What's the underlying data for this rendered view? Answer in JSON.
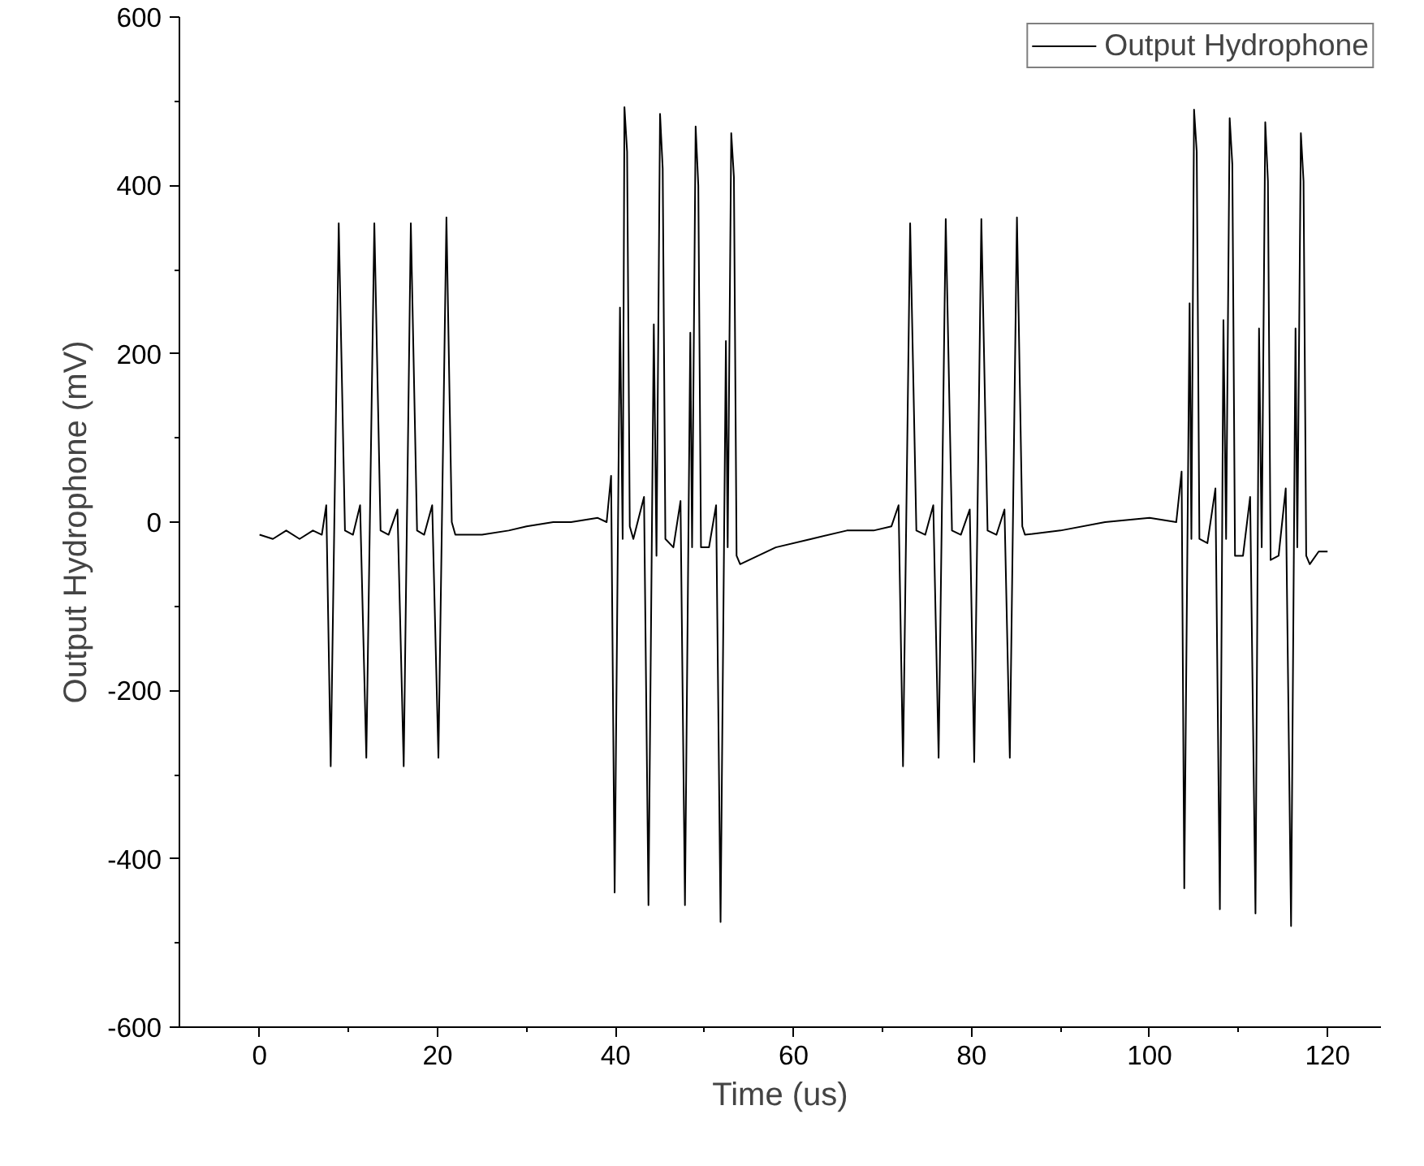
{
  "chart_data": {
    "type": "line",
    "xlabel": "Time (us)",
    "ylabel": "Output Hydrophone (mV)",
    "xlim": [
      -9,
      126
    ],
    "ylim": [
      -600,
      600
    ],
    "xticks": [
      0,
      20,
      40,
      60,
      80,
      100,
      120
    ],
    "yticks": [
      -600,
      -400,
      -200,
      0,
      200,
      400,
      600
    ],
    "grid": false,
    "legend": "top right",
    "line_style": "solid",
    "marker": "none",
    "series": [
      {
        "name": "Output Hydrophone",
        "color": "#000000",
        "x": [
          0,
          1.5,
          3,
          4.5,
          6,
          7,
          7.5,
          8,
          8.9,
          9.6,
          10.5,
          11.3,
          12,
          12.9,
          13.6,
          14.5,
          15.5,
          16.2,
          17,
          17.7,
          18.5,
          19.4,
          20.1,
          21,
          21.6,
          22,
          25,
          28,
          30,
          33,
          35,
          38,
          39,
          39.5,
          39.9,
          40.5,
          40.8,
          41,
          41.3,
          41.6,
          42,
          43.2,
          43.7,
          44.3,
          44.6,
          45,
          45.3,
          45.6,
          46.5,
          47.3,
          47.8,
          48.4,
          48.6,
          49,
          49.3,
          49.6,
          50.5,
          51.3,
          51.8,
          52.4,
          52.6,
          53,
          53.3,
          53.6,
          54,
          58,
          62,
          66,
          69,
          71,
          71.8,
          72.3,
          73.1,
          73.8,
          74.8,
          75.7,
          76.3,
          77.1,
          77.8,
          78.8,
          79.8,
          80.3,
          81.1,
          81.8,
          82.8,
          83.7,
          84.3,
          85.1,
          85.7,
          86,
          90,
          95,
          100,
          103,
          103.6,
          103.9,
          104.5,
          104.7,
          105,
          105.3,
          105.6,
          106.5,
          107.4,
          107.9,
          108.3,
          108.6,
          109,
          109.3,
          109.6,
          110.5,
          111.3,
          111.9,
          112.3,
          112.6,
          113,
          113.3,
          113.6,
          114.5,
          115.3,
          115.9,
          116.4,
          116.6,
          117,
          117.3,
          117.6,
          118,
          119,
          120
        ],
        "values": [
          -15,
          -20,
          -10,
          -20,
          -10,
          -15,
          20,
          -290,
          355,
          -10,
          -15,
          20,
          -280,
          355,
          -10,
          -15,
          15,
          -290,
          355,
          -10,
          -15,
          20,
          -280,
          362,
          0,
          -15,
          -15,
          -10,
          -5,
          0,
          0,
          5,
          0,
          55,
          -440,
          255,
          -20,
          493,
          440,
          -5,
          -20,
          30,
          -455,
          235,
          -40,
          485,
          420,
          -20,
          -30,
          25,
          -455,
          225,
          -30,
          470,
          400,
          -30,
          -30,
          20,
          -475,
          215,
          -30,
          462,
          410,
          -40,
          -50,
          -30,
          -20,
          -10,
          -10,
          -5,
          20,
          -290,
          355,
          -10,
          -15,
          20,
          -280,
          360,
          -10,
          -15,
          15,
          -285,
          360,
          -10,
          -15,
          15,
          -280,
          362,
          -5,
          -15,
          -10,
          0,
          5,
          0,
          60,
          -435,
          260,
          -20,
          490,
          440,
          -20,
          -25,
          40,
          -460,
          240,
          -20,
          480,
          425,
          -40,
          -40,
          30,
          -465,
          230,
          -30,
          475,
          405,
          -45,
          -40,
          40,
          -480,
          230,
          -30,
          462,
          405,
          -40,
          -50,
          -35,
          -35
        ]
      }
    ]
  }
}
